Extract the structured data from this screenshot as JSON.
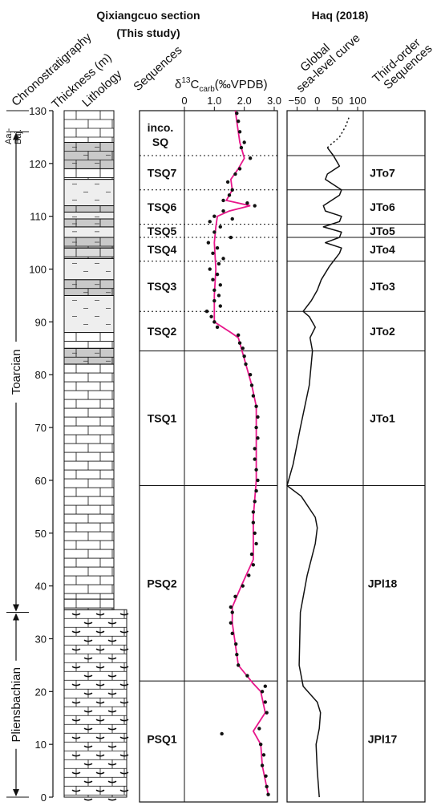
{
  "titles": {
    "left_title_line1": "Qixiangcuo section",
    "left_title_line2": "(This study)",
    "right_title": "Haq (2018)"
  },
  "column_headers": {
    "chronostratigraphy": "Chronostratigraphy",
    "thickness": "Thickness (m)",
    "lithology": "Lithology",
    "sequences": "Sequences",
    "isotope_delta": "δ",
    "isotope_sup": "13",
    "isotope_c": "C",
    "isotope_sub": "carb",
    "isotope_unit": "(‰VPDB)",
    "sea_level_line1": "Global",
    "sea_level_line2": "sea-level curve",
    "third_order_line1": "Third-order",
    "third_order_line2": "Sequences"
  },
  "stages": {
    "aalenian_bajocian_line1": "Aa.-",
    "aalenian_bajocian_line2": "Baj.",
    "toarcian": "Toarcian",
    "pliensbachian": "Pliensbachian",
    "toarcian_range_m": [
      35,
      126
    ],
    "pliensbachian_range_m": [
      0,
      35
    ]
  },
  "lithology_intervals": [
    {
      "type": "limestone",
      "from": 0,
      "to": 35.5
    },
    {
      "type": "limestone",
      "from": 35.5,
      "to": 37.5
    },
    {
      "type": "limestone",
      "from": 37.5,
      "to": 82
    },
    {
      "type": "dark_lime",
      "from": 82,
      "to": 85
    },
    {
      "type": "limestone",
      "from": 85,
      "to": 88
    },
    {
      "type": "marl",
      "from": 88,
      "to": 95
    },
    {
      "type": "dark_lime",
      "from": 95,
      "to": 98
    },
    {
      "type": "marl",
      "from": 98,
      "to": 102
    },
    {
      "type": "light_lime",
      "from": 102,
      "to": 104
    },
    {
      "type": "dark_lime",
      "from": 104,
      "to": 106
    },
    {
      "type": "marl",
      "from": 106,
      "to": 108
    },
    {
      "type": "dark_lime",
      "from": 108,
      "to": 109.5
    },
    {
      "type": "marl",
      "from": 109.5,
      "to": 110.8
    },
    {
      "type": "dark_lime",
      "from": 110.8,
      "to": 112
    },
    {
      "type": "marl",
      "from": 112,
      "to": 117
    },
    {
      "type": "limestone",
      "from": 117,
      "to": 119
    },
    {
      "type": "dark_lime",
      "from": 119,
      "to": 124
    },
    {
      "type": "limestone",
      "from": 124,
      "to": 130
    }
  ],
  "sequences": [
    {
      "name": "inco.",
      "name_line2": "SQ",
      "from": 121.5,
      "to": 130
    },
    {
      "name": "TSQ7",
      "from": 115,
      "to": 121.5
    },
    {
      "name": "TSQ6",
      "from": 108.5,
      "to": 115
    },
    {
      "name": "TSQ5",
      "from": 106,
      "to": 108.5
    },
    {
      "name": "TSQ4",
      "from": 101.5,
      "to": 106
    },
    {
      "name": "TSQ3",
      "from": 92,
      "to": 101.5
    },
    {
      "name": "TSQ2",
      "from": 84.5,
      "to": 92
    },
    {
      "name": "TSQ1",
      "from": 59,
      "to": 84.5
    },
    {
      "name": "PSQ2",
      "from": 22,
      "to": 59
    },
    {
      "name": "PSQ1",
      "from": 0,
      "to": 22
    }
  ],
  "third_order_sequences": [
    {
      "name": "JTo7",
      "from": 115,
      "to": 121.5
    },
    {
      "name": "JTo6",
      "from": 108.5,
      "to": 115
    },
    {
      "name": "JTo5",
      "from": 106,
      "to": 108.5
    },
    {
      "name": "JTo4",
      "from": 101.5,
      "to": 106
    },
    {
      "name": "JTo3",
      "from": 92,
      "to": 101.5
    },
    {
      "name": "JTo2",
      "from": 84.5,
      "to": 92
    },
    {
      "name": "JTo1",
      "from": 59,
      "to": 84.5
    },
    {
      "name": "JPl18",
      "from": 22,
      "to": 59
    },
    {
      "name": "JPl17",
      "from": 0,
      "to": 22
    }
  ],
  "chart_data": [
    {
      "type": "scatter",
      "y_axis_ticks": [
        0,
        10,
        20,
        30,
        40,
        50,
        60,
        70,
        80,
        90,
        100,
        110,
        120,
        130
      ],
      "ylim": [
        0,
        130
      ],
      "xlim": [
        0,
        3.0
      ],
      "x_ticks": [
        "0",
        "1.0",
        "2.0",
        "3.0"
      ],
      "x_tick_values": [
        0,
        1.0,
        2.0,
        3.0
      ],
      "points": [
        [
          2.8,
          0.5
        ],
        [
          2.75,
          2
        ],
        [
          2.72,
          4
        ],
        [
          2.6,
          6
        ],
        [
          2.65,
          8
        ],
        [
          2.55,
          10
        ],
        [
          1.25,
          12
        ],
        [
          2.5,
          13
        ],
        [
          2.75,
          16
        ],
        [
          2.7,
          18
        ],
        [
          2.6,
          20
        ],
        [
          2.7,
          21
        ],
        [
          2.1,
          23
        ],
        [
          1.8,
          25
        ],
        [
          1.75,
          27
        ],
        [
          1.72,
          29
        ],
        [
          1.6,
          31
        ],
        [
          1.55,
          33
        ],
        [
          1.6,
          35
        ],
        [
          1.55,
          36
        ],
        [
          1.7,
          38
        ],
        [
          1.95,
          40
        ],
        [
          2.15,
          42
        ],
        [
          2.3,
          44
        ],
        [
          2.25,
          46
        ],
        [
          2.4,
          48
        ],
        [
          2.35,
          50
        ],
        [
          2.3,
          52
        ],
        [
          2.3,
          54
        ],
        [
          2.35,
          56
        ],
        [
          2.4,
          58
        ],
        [
          2.45,
          60
        ],
        [
          2.4,
          62
        ],
        [
          2.35,
          64
        ],
        [
          2.35,
          66
        ],
        [
          2.45,
          68
        ],
        [
          2.4,
          70
        ],
        [
          2.45,
          72
        ],
        [
          2.4,
          74
        ],
        [
          2.3,
          76
        ],
        [
          2.25,
          78
        ],
        [
          2.2,
          80
        ],
        [
          2.05,
          82
        ],
        [
          2.0,
          83.5
        ],
        [
          1.95,
          85
        ],
        [
          1.85,
          86
        ],
        [
          1.8,
          87.5
        ],
        [
          1.1,
          89
        ],
        [
          1.0,
          90
        ],
        [
          0.9,
          91
        ],
        [
          0.75,
          92
        ],
        [
          1.2,
          93
        ],
        [
          1.0,
          94
        ],
        [
          1.15,
          95
        ],
        [
          1.0,
          96
        ],
        [
          1.2,
          97
        ],
        [
          0.95,
          98
        ],
        [
          1.1,
          99
        ],
        [
          0.85,
          100
        ],
        [
          1.15,
          101
        ],
        [
          1.3,
          102
        ],
        [
          0.95,
          103
        ],
        [
          1.1,
          104
        ],
        [
          0.8,
          105
        ],
        [
          1.55,
          106
        ],
        [
          1.0,
          107
        ],
        [
          1.2,
          108
        ],
        [
          0.85,
          109
        ],
        [
          1.6,
          109.5
        ],
        [
          1.0,
          110
        ],
        [
          1.3,
          111
        ],
        [
          2.35,
          112
        ],
        [
          2.1,
          112.5
        ],
        [
          1.3,
          113
        ],
        [
          1.5,
          114
        ],
        [
          1.6,
          115
        ],
        [
          1.45,
          116.5
        ],
        [
          1.7,
          118
        ],
        [
          1.85,
          119
        ],
        [
          2.2,
          121
        ],
        [
          1.9,
          123
        ],
        [
          2.0,
          124
        ],
        [
          1.85,
          126
        ],
        [
          1.8,
          128
        ],
        [
          1.75,
          129.5
        ]
      ],
      "trend_line": [
        [
          2.8,
          0.5
        ],
        [
          2.6,
          6
        ],
        [
          2.55,
          10
        ],
        [
          2.3,
          12.5
        ],
        [
          2.7,
          16
        ],
        [
          2.55,
          20
        ],
        [
          2.3,
          21.5
        ],
        [
          1.8,
          25
        ],
        [
          1.6,
          33
        ],
        [
          1.6,
          36
        ],
        [
          1.9,
          40
        ],
        [
          2.3,
          45
        ],
        [
          2.3,
          53
        ],
        [
          2.4,
          60
        ],
        [
          2.4,
          70
        ],
        [
          2.4,
          74
        ],
        [
          2.25,
          78
        ],
        [
          2.0,
          83
        ],
        [
          1.8,
          87
        ],
        [
          1.55,
          88
        ],
        [
          1.0,
          90
        ],
        [
          1.0,
          95
        ],
        [
          1.05,
          100
        ],
        [
          1.0,
          105
        ],
        [
          1.05,
          108
        ],
        [
          1.1,
          110
        ],
        [
          1.5,
          111
        ],
        [
          2.2,
          112
        ],
        [
          1.4,
          113
        ],
        [
          1.6,
          115
        ],
        [
          1.55,
          117
        ],
        [
          1.8,
          119
        ],
        [
          2.0,
          121
        ],
        [
          1.85,
          124
        ],
        [
          1.75,
          128
        ],
        [
          1.7,
          130
        ]
      ],
      "point_color": "#111111",
      "line_color": "#e8168b"
    },
    {
      "type": "line",
      "x_ticks": [
        "−50",
        "0",
        "50",
        "100"
      ],
      "x_tick_values": [
        -50,
        0,
        50,
        100
      ],
      "xlim": [
        -75,
        100
      ],
      "ylim": [
        0,
        130
      ],
      "curve_solid": [
        [
          5,
          0
        ],
        [
          0,
          5
        ],
        [
          -3,
          10
        ],
        [
          5,
          13
        ],
        [
          8,
          16
        ],
        [
          0,
          18
        ],
        [
          -35,
          21
        ],
        [
          -45,
          25
        ],
        [
          -42,
          35
        ],
        [
          -25,
          42
        ],
        [
          -5,
          48
        ],
        [
          0,
          51
        ],
        [
          -5,
          53
        ],
        [
          -40,
          57
        ],
        [
          -75,
          59
        ],
        [
          -60,
          63
        ],
        [
          -42,
          70
        ],
        [
          -20,
          78
        ],
        [
          -12,
          84.5
        ],
        [
          -18,
          87
        ],
        [
          -5,
          89
        ],
        [
          -20,
          91
        ],
        [
          -35,
          92
        ],
        [
          -15,
          94
        ],
        [
          0,
          96
        ],
        [
          10,
          98
        ],
        [
          30,
          100.5
        ],
        [
          40,
          101.5
        ],
        [
          55,
          103
        ],
        [
          60,
          104
        ],
        [
          20,
          105
        ],
        [
          55,
          106
        ],
        [
          60,
          107
        ],
        [
          15,
          108
        ],
        [
          55,
          109
        ],
        [
          60,
          110
        ],
        [
          20,
          111
        ],
        [
          15,
          112
        ],
        [
          55,
          114
        ],
        [
          60,
          115
        ],
        [
          20,
          117
        ],
        [
          25,
          118
        ],
        [
          55,
          119.5
        ],
        [
          40,
          121.5
        ],
        [
          25,
          123
        ]
      ],
      "curve_dotted": [
        [
          25,
          123
        ],
        [
          55,
          125
        ],
        [
          70,
          127
        ],
        [
          80,
          129
        ]
      ],
      "line_color": "#111111"
    }
  ]
}
